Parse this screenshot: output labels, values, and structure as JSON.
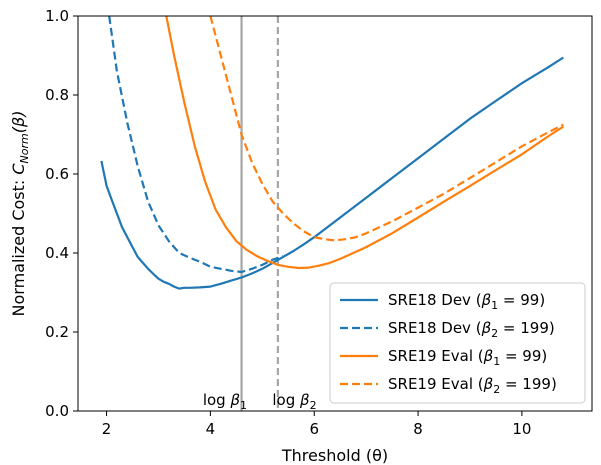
{
  "chart_data": {
    "type": "line",
    "title": "",
    "xlabel": "Threshold (θ)",
    "ylabel": "Normalized Cost: C_Norm(β)",
    "ylabel_parts": {
      "main": "Normalized Cost: ",
      "symbol": "C",
      "subscript": "Norm",
      "tail": "(β)"
    },
    "xlim": [
      1.45,
      11.35
    ],
    "ylim": [
      0.0,
      1.0
    ],
    "xticks": [
      2,
      4,
      6,
      8,
      10
    ],
    "yticks": [
      0.0,
      0.2,
      0.4,
      0.6,
      0.8,
      1.0
    ],
    "xtick_labels": [
      "2",
      "4",
      "6",
      "8",
      "10"
    ],
    "ytick_labels": [
      "0.0",
      "0.2",
      "0.4",
      "0.6",
      "0.8",
      "1.0"
    ],
    "grid": false,
    "legend_position": "lower-right",
    "vlines": [
      {
        "x": 4.6,
        "color": "#a6a6a6",
        "style": "solid",
        "label": "log β₁"
      },
      {
        "x": 5.3,
        "color": "#a6a6a6",
        "style": "dashed",
        "label": "log β₂"
      }
    ],
    "series": [
      {
        "name": "SRE18 Dev (β₁ = 99)",
        "color": "#1f77b4",
        "style": "solid",
        "x": [
          1.9,
          2.0,
          2.1,
          2.2,
          2.3,
          2.4,
          2.5,
          2.6,
          2.7,
          2.8,
          2.9,
          3.0,
          3.1,
          3.2,
          3.3,
          3.4,
          3.5,
          3.6,
          3.8,
          4.0,
          4.2,
          4.4,
          4.6,
          4.8,
          5.0,
          5.2,
          5.4,
          5.6,
          5.8,
          6.0,
          6.5,
          7.0,
          7.5,
          8.0,
          8.5,
          9.0,
          9.5,
          10.0,
          10.5,
          10.8
        ],
        "y": [
          0.633,
          0.57,
          0.535,
          0.5,
          0.465,
          0.44,
          0.415,
          0.39,
          0.375,
          0.36,
          0.347,
          0.335,
          0.327,
          0.322,
          0.315,
          0.31,
          0.312,
          0.312,
          0.313,
          0.315,
          0.322,
          0.33,
          0.338,
          0.348,
          0.36,
          0.375,
          0.39,
          0.405,
          0.422,
          0.44,
          0.49,
          0.54,
          0.59,
          0.64,
          0.69,
          0.74,
          0.785,
          0.83,
          0.87,
          0.895
        ]
      },
      {
        "name": "SRE18 Dev (β₂ = 199)",
        "color": "#1f77b4",
        "style": "dashed",
        "x": [
          2.05,
          2.2,
          2.4,
          2.6,
          2.8,
          3.0,
          3.2,
          3.4,
          3.6,
          3.8,
          4.0,
          4.2,
          4.4,
          4.6,
          4.8,
          5.0,
          5.2,
          5.4
        ],
        "y": [
          1.0,
          0.86,
          0.73,
          0.62,
          0.53,
          0.47,
          0.43,
          0.4,
          0.388,
          0.378,
          0.365,
          0.36,
          0.355,
          0.352,
          0.36,
          0.37,
          0.383,
          0.392
        ]
      },
      {
        "name": "SRE19 Eval (β₁ = 99)",
        "color": "#ff7f0e",
        "style": "solid",
        "x": [
          3.15,
          3.3,
          3.5,
          3.7,
          3.9,
          4.1,
          4.3,
          4.5,
          4.7,
          4.9,
          5.1,
          5.3,
          5.5,
          5.7,
          5.9,
          6.1,
          6.3,
          6.5,
          7.0,
          7.5,
          8.0,
          8.5,
          9.0,
          9.5,
          10.0,
          10.5,
          10.8
        ],
        "y": [
          1.0,
          0.9,
          0.78,
          0.67,
          0.58,
          0.51,
          0.465,
          0.43,
          0.408,
          0.392,
          0.38,
          0.37,
          0.365,
          0.362,
          0.363,
          0.368,
          0.375,
          0.385,
          0.415,
          0.45,
          0.49,
          0.53,
          0.57,
          0.61,
          0.65,
          0.695,
          0.72
        ]
      },
      {
        "name": "SRE19 Eval (β₂ = 199)",
        "color": "#ff7f0e",
        "style": "dashed",
        "x": [
          4.0,
          4.2,
          4.4,
          4.6,
          4.8,
          5.0,
          5.2,
          5.4,
          5.6,
          5.8,
          6.0,
          6.2,
          6.4,
          6.6,
          6.8,
          7.0,
          7.5,
          8.0,
          8.5,
          9.0,
          9.5,
          10.0,
          10.5,
          10.8
        ],
        "y": [
          1.0,
          0.9,
          0.8,
          0.7,
          0.63,
          0.575,
          0.53,
          0.5,
          0.475,
          0.455,
          0.44,
          0.435,
          0.432,
          0.435,
          0.44,
          0.45,
          0.48,
          0.515,
          0.55,
          0.59,
          0.63,
          0.67,
          0.705,
          0.725
        ]
      }
    ],
    "legend": [
      {
        "prefix": "SRE18 Dev (",
        "beta": "β",
        "sub": "1",
        "suffix": " = 99)"
      },
      {
        "prefix": "SRE18 Dev (",
        "beta": "β",
        "sub": "2",
        "suffix": " = 199)"
      },
      {
        "prefix": "SRE19 Eval (",
        "beta": "β",
        "sub": "1",
        "suffix": " = 99)"
      },
      {
        "prefix": "SRE19 Eval (",
        "beta": "β",
        "sub": "2",
        "suffix": " = 199)"
      }
    ],
    "annotations": [
      {
        "prefix": "log ",
        "beta": "β",
        "sub": "1"
      },
      {
        "prefix": "log ",
        "beta": "β",
        "sub": "2"
      }
    ]
  }
}
